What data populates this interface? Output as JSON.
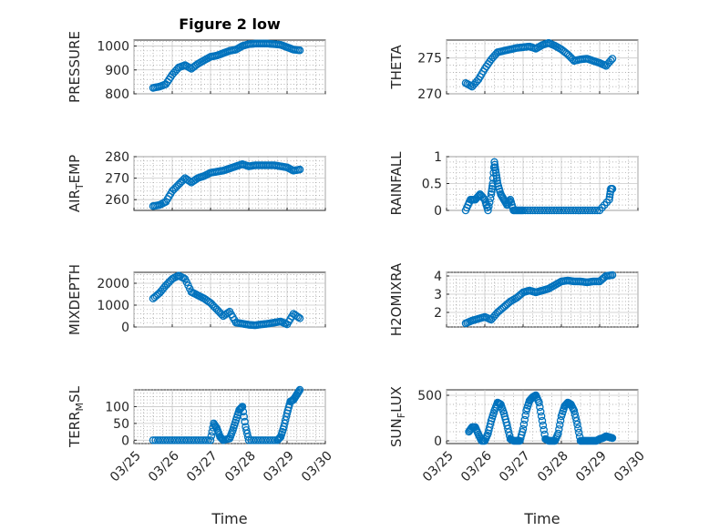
{
  "figure": {
    "title": "Figure 2 low",
    "xlabel": "Time"
  },
  "colors": {
    "marker": "#0072BD",
    "axis": "#262626"
  },
  "x_ticks": [
    "03/25",
    "03/26",
    "03/27",
    "03/28",
    "03/29",
    "03/30"
  ],
  "chart_data": [
    {
      "type": "scatter",
      "ylabel": "PRESSURE",
      "ylim": [
        800,
        1025
      ],
      "yticks": [
        "800",
        "900",
        "1000"
      ],
      "grid": true,
      "x": [
        "03/25 12:00",
        "03/25 16:00",
        "03/25 20:00",
        "03/26 00:00",
        "03/26 04:00",
        "03/26 08:00",
        "03/26 12:00",
        "03/26 16:00",
        "03/26 20:00",
        "03/27 00:00",
        "03/27 04:00",
        "03/27 08:00",
        "03/27 12:00",
        "03/27 16:00",
        "03/27 20:00",
        "03/28 00:00",
        "03/28 04:00",
        "03/28 08:00",
        "03/28 12:00",
        "03/28 16:00",
        "03/28 20:00",
        "03/29 00:00",
        "03/29 04:00",
        "03/29 08:00"
      ],
      "y": [
        825,
        830,
        840,
        880,
        910,
        920,
        905,
        925,
        940,
        955,
        960,
        970,
        980,
        985,
        1000,
        1008,
        1010,
        1010,
        1010,
        1008,
        1005,
        995,
        985,
        982
      ]
    },
    {
      "type": "scatter",
      "ylabel": "THETA",
      "ylim": [
        270,
        277.5
      ],
      "yticks": [
        "270",
        "275"
      ],
      "grid": true,
      "x": [
        "03/25 12:00",
        "03/25 16:00",
        "03/25 20:00",
        "03/26 00:00",
        "03/26 04:00",
        "03/26 08:00",
        "03/26 12:00",
        "03/26 16:00",
        "03/26 20:00",
        "03/27 00:00",
        "03/27 04:00",
        "03/27 08:00",
        "03/27 12:00",
        "03/27 16:00",
        "03/27 20:00",
        "03/28 00:00",
        "03/28 04:00",
        "03/28 08:00",
        "03/28 12:00",
        "03/28 16:00",
        "03/28 20:00",
        "03/29 00:00",
        "03/29 04:00",
        "03/29 08:00"
      ],
      "y": [
        271.5,
        271.0,
        272.0,
        273.5,
        274.8,
        275.8,
        276.0,
        276.2,
        276.4,
        276.5,
        276.6,
        276.3,
        276.8,
        277.1,
        276.7,
        276.2,
        275.5,
        274.6,
        274.8,
        274.9,
        274.6,
        274.3,
        273.9,
        274.9
      ]
    },
    {
      "type": "scatter",
      "ylabel": "AIR_TEMP",
      "ylim": [
        255,
        280
      ],
      "yticks": [
        "260",
        "270",
        "280"
      ],
      "grid": true,
      "x": [
        "03/25 12:00",
        "03/25 16:00",
        "03/25 20:00",
        "03/26 00:00",
        "03/26 04:00",
        "03/26 08:00",
        "03/26 12:00",
        "03/26 16:00",
        "03/26 20:00",
        "03/27 00:00",
        "03/27 04:00",
        "03/27 08:00",
        "03/27 12:00",
        "03/27 16:00",
        "03/27 20:00",
        "03/28 00:00",
        "03/28 04:00",
        "03/28 08:00",
        "03/28 12:00",
        "03/28 16:00",
        "03/28 20:00",
        "03/29 00:00",
        "03/29 04:00",
        "03/29 08:00"
      ],
      "y": [
        257,
        257.5,
        259,
        264,
        267,
        270,
        268,
        270,
        271,
        272.5,
        273,
        273.5,
        274.5,
        275.5,
        276.5,
        275.5,
        276,
        276,
        276,
        276,
        275.5,
        275,
        273.5,
        274
      ]
    },
    {
      "type": "scatter",
      "ylabel": "RAINFALL",
      "ylim": [
        0,
        1
      ],
      "yticks": [
        "0",
        "0.5",
        "1"
      ],
      "grid": true,
      "x": [
        "03/25 12:00",
        "03/25 15:00",
        "03/25 18:00",
        "03/25 21:00",
        "03/26 00:00",
        "03/26 02:00",
        "03/26 04:00",
        "03/26 05:00",
        "03/26 06:00",
        "03/26 07:00",
        "03/26 08:00",
        "03/26 10:00",
        "03/26 12:00",
        "03/26 14:00",
        "03/26 16:00",
        "03/26 18:00",
        "03/26 21:00",
        "03/27 00:00",
        "03/27 06:00",
        "03/27 12:00",
        "03/27 18:00",
        "03/28 00:00",
        "03/28 06:00",
        "03/28 12:00",
        "03/28 18:00",
        "03/29 00:00",
        "03/29 06:00",
        "03/29 07:00",
        "03/29 08:00"
      ],
      "y": [
        0,
        0.2,
        0.2,
        0.3,
        0.2,
        0,
        0.3,
        0.5,
        0.9,
        0.7,
        0.5,
        0.3,
        0.2,
        0.1,
        0.2,
        0,
        0,
        0,
        0,
        0,
        0,
        0,
        0,
        0,
        0,
        0,
        0.2,
        0.4,
        0.4
      ]
    },
    {
      "type": "scatter",
      "ylabel": "MIXDEPTH",
      "ylim": [
        0,
        2500
      ],
      "yticks": [
        "0",
        "1000",
        "2000"
      ],
      "grid": true,
      "x": [
        "03/25 12:00",
        "03/25 16:00",
        "03/25 20:00",
        "03/26 00:00",
        "03/26 04:00",
        "03/26 08:00",
        "03/26 12:00",
        "03/26 16:00",
        "03/26 20:00",
        "03/27 00:00",
        "03/27 04:00",
        "03/27 08:00",
        "03/27 12:00",
        "03/27 16:00",
        "03/27 20:00",
        "03/28 00:00",
        "03/28 04:00",
        "03/28 08:00",
        "03/28 12:00",
        "03/28 16:00",
        "03/28 20:00",
        "03/29 00:00",
        "03/29 04:00",
        "03/29 08:00"
      ],
      "y": [
        1300,
        1550,
        1900,
        2200,
        2350,
        2200,
        1600,
        1450,
        1300,
        1100,
        800,
        500,
        700,
        200,
        150,
        100,
        80,
        120,
        150,
        200,
        250,
        120,
        600,
        400
      ]
    },
    {
      "type": "scatter",
      "ylabel": "H2OMIXRA",
      "ylim": [
        1.2,
        4.2
      ],
      "yticks": [
        "2",
        "3",
        "4"
      ],
      "grid": true,
      "x": [
        "03/25 12:00",
        "03/25 16:00",
        "03/25 20:00",
        "03/26 00:00",
        "03/26 04:00",
        "03/26 08:00",
        "03/26 12:00",
        "03/26 16:00",
        "03/26 20:00",
        "03/27 00:00",
        "03/27 04:00",
        "03/27 08:00",
        "03/27 12:00",
        "03/27 16:00",
        "03/27 20:00",
        "03/28 00:00",
        "03/28 04:00",
        "03/28 08:00",
        "03/28 12:00",
        "03/28 16:00",
        "03/28 20:00",
        "03/29 00:00",
        "03/29 04:00",
        "03/29 08:00"
      ],
      "y": [
        1.4,
        1.55,
        1.65,
        1.75,
        1.6,
        2.0,
        2.3,
        2.6,
        2.8,
        3.1,
        3.2,
        3.1,
        3.2,
        3.3,
        3.5,
        3.7,
        3.75,
        3.7,
        3.7,
        3.65,
        3.7,
        3.7,
        4.0,
        4.05
      ]
    },
    {
      "type": "scatter",
      "ylabel": "TERR_MSL",
      "ylim": [
        -10,
        150
      ],
      "yticks": [
        "0",
        "50",
        "100"
      ],
      "grid": true,
      "x": [
        "03/25 12:00",
        "03/25 18:00",
        "03/26 00:00",
        "03/26 06:00",
        "03/26 12:00",
        "03/26 18:00",
        "03/27 00:00",
        "03/27 02:00",
        "03/27 04:00",
        "03/27 06:00",
        "03/27 08:00",
        "03/27 12:00",
        "03/27 14:00",
        "03/27 16:00",
        "03/27 18:00",
        "03/27 20:00",
        "03/27 22:00",
        "03/28 00:00",
        "03/28 06:00",
        "03/28 12:00",
        "03/28 18:00",
        "03/28 20:00",
        "03/28 22:00",
        "03/29 00:00",
        "03/29 02:00",
        "03/29 04:00",
        "03/29 06:00",
        "03/29 08:00"
      ],
      "y": [
        0,
        0,
        0,
        0,
        0,
        0,
        0,
        50,
        35,
        10,
        0,
        5,
        30,
        60,
        90,
        100,
        40,
        0,
        0,
        0,
        0,
        10,
        40,
        80,
        115,
        120,
        135,
        150
      ]
    },
    {
      "type": "scatter",
      "ylabel": "SUN_FLUX",
      "ylim": [
        -30,
        560
      ],
      "yticks": [
        "0",
        "500"
      ],
      "grid": true,
      "x": [
        "03/25 14:00",
        "03/25 16:00",
        "03/25 18:00",
        "03/25 20:00",
        "03/25 22:00",
        "03/26 00:00",
        "03/26 02:00",
        "03/26 04:00",
        "03/26 06:00",
        "03/26 08:00",
        "03/26 10:00",
        "03/26 12:00",
        "03/26 14:00",
        "03/26 16:00",
        "03/26 18:00",
        "03/26 20:00",
        "03/26 22:00",
        "03/27 00:00",
        "03/27 02:00",
        "03/27 04:00",
        "03/27 06:00",
        "03/27 08:00",
        "03/27 10:00",
        "03/27 12:00",
        "03/27 14:00",
        "03/27 16:00",
        "03/27 18:00",
        "03/27 20:00",
        "03/27 22:00",
        "03/28 00:00",
        "03/28 02:00",
        "03/28 04:00",
        "03/28 06:00",
        "03/28 08:00",
        "03/28 10:00",
        "03/28 12:00",
        "03/28 14:00",
        "03/28 16:00",
        "03/28 18:00",
        "03/28 20:00",
        "03/28 22:00",
        "03/29 00:00",
        "03/29 02:00",
        "03/29 04:00",
        "03/29 06:00",
        "03/29 08:00"
      ],
      "y": [
        100,
        150,
        150,
        70,
        0,
        0,
        80,
        220,
        330,
        420,
        400,
        300,
        170,
        20,
        0,
        0,
        0,
        130,
        330,
        440,
        480,
        500,
        420,
        220,
        20,
        0,
        0,
        0,
        80,
        270,
        380,
        420,
        400,
        330,
        180,
        0,
        0,
        0,
        0,
        0,
        0,
        20,
        30,
        50,
        40,
        30
      ]
    }
  ]
}
